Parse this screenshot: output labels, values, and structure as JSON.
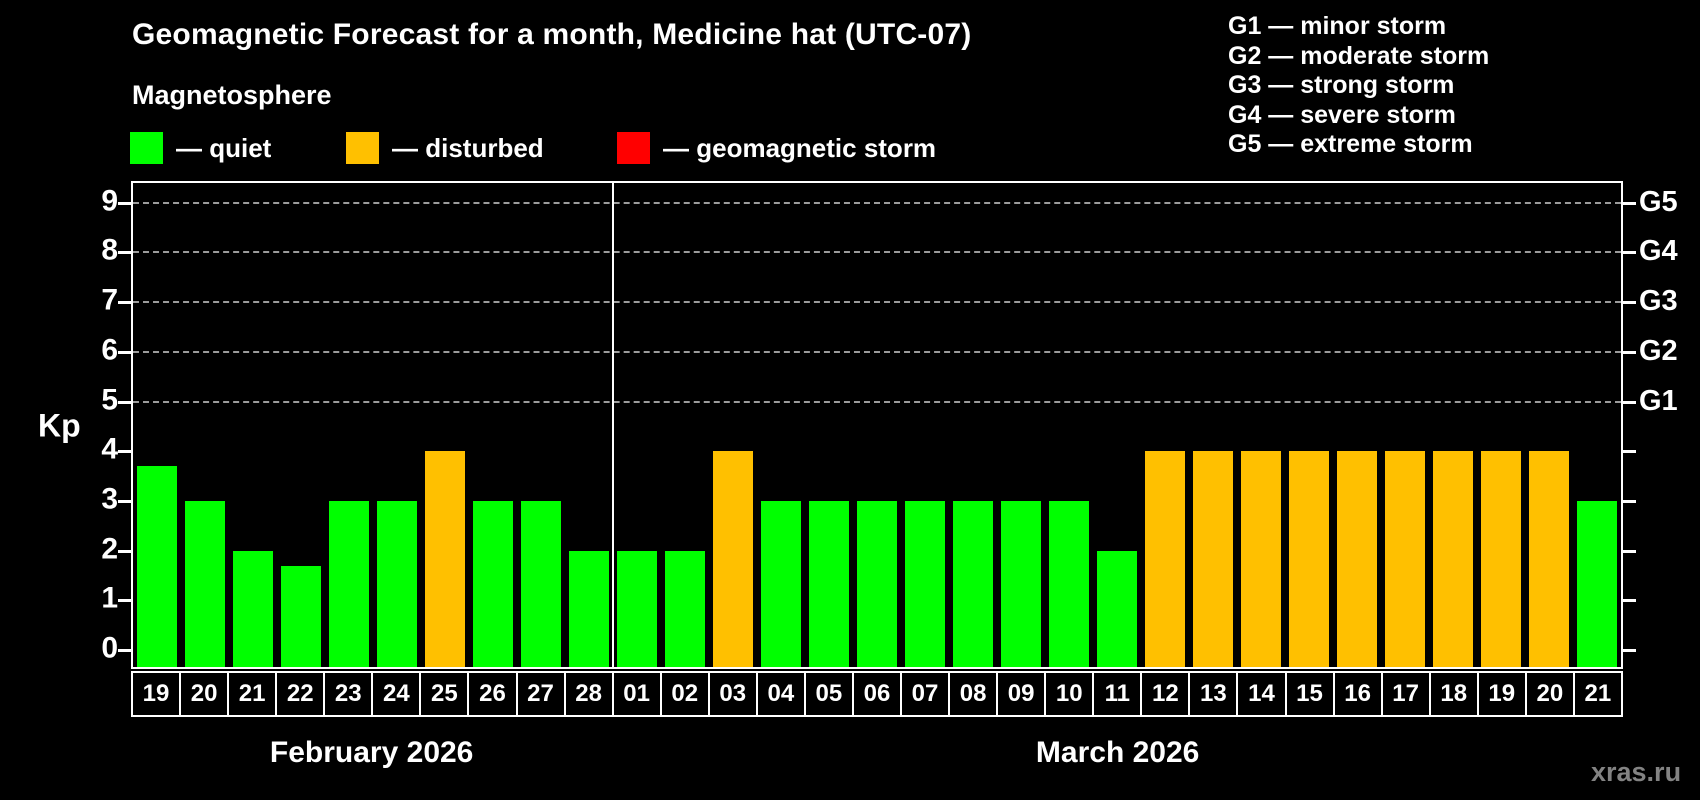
{
  "header": {
    "title": "Geomagnetic Forecast for a month, Medicine hat (UTC-07)",
    "subtitle": "Magnetosphere"
  },
  "legend": {
    "items": [
      {
        "name": "quiet",
        "label": "— quiet",
        "color": "#00ff00"
      },
      {
        "name": "disturbed",
        "label": "— disturbed",
        "color": "#ffc000"
      },
      {
        "name": "geomagnetic-storm",
        "label": "— geomagnetic storm",
        "color": "#ff0000"
      }
    ]
  },
  "storm_scale": {
    "items": [
      "G1 — minor storm",
      "G2 — moderate storm",
      "G3 — strong storm",
      "G4 — severe storm",
      "G5 — extreme storm"
    ]
  },
  "status_colors": {
    "quiet": "#00ff00",
    "disturbed": "#ffc000",
    "storm": "#ff0000"
  },
  "watermark": "xras.ru",
  "chart_data": {
    "type": "bar",
    "title": "Geomagnetic Forecast for a month, Medicine hat (UTC-07)",
    "ylabel": "Kp",
    "ylim": [
      0,
      9
    ],
    "yticks": [
      0,
      1,
      2,
      3,
      4,
      5,
      6,
      7,
      8,
      9
    ],
    "grid": "dashed horizontal gridlines at Kp 5,6,7,8,9 only",
    "legend_position": "top-left",
    "right_axis": [
      {
        "kp": 5,
        "label": "G1"
      },
      {
        "kp": 6,
        "label": "G2"
      },
      {
        "kp": 7,
        "label": "G3"
      },
      {
        "kp": 8,
        "label": "G4"
      },
      {
        "kp": 9,
        "label": "G5"
      }
    ],
    "months": [
      {
        "label": "February 2026",
        "days": [
          {
            "day": "19",
            "kp": 3.7,
            "status": "quiet"
          },
          {
            "day": "20",
            "kp": 3,
            "status": "quiet"
          },
          {
            "day": "21",
            "kp": 2,
            "status": "quiet"
          },
          {
            "day": "22",
            "kp": 1.7,
            "status": "quiet"
          },
          {
            "day": "23",
            "kp": 3,
            "status": "quiet"
          },
          {
            "day": "24",
            "kp": 3,
            "status": "quiet"
          },
          {
            "day": "25",
            "kp": 4,
            "status": "disturbed"
          },
          {
            "day": "26",
            "kp": 3,
            "status": "quiet"
          },
          {
            "day": "27",
            "kp": 3,
            "status": "quiet"
          },
          {
            "day": "28",
            "kp": 2,
            "status": "quiet"
          }
        ]
      },
      {
        "label": "March 2026",
        "days": [
          {
            "day": "01",
            "kp": 2,
            "status": "quiet"
          },
          {
            "day": "02",
            "kp": 2,
            "status": "quiet"
          },
          {
            "day": "03",
            "kp": 4,
            "status": "disturbed"
          },
          {
            "day": "04",
            "kp": 3,
            "status": "quiet"
          },
          {
            "day": "05",
            "kp": 3,
            "status": "quiet"
          },
          {
            "day": "06",
            "kp": 3,
            "status": "quiet"
          },
          {
            "day": "07",
            "kp": 3,
            "status": "quiet"
          },
          {
            "day": "08",
            "kp": 3,
            "status": "quiet"
          },
          {
            "day": "09",
            "kp": 3,
            "status": "quiet"
          },
          {
            "day": "10",
            "kp": 3,
            "status": "quiet"
          },
          {
            "day": "11",
            "kp": 2,
            "status": "quiet"
          },
          {
            "day": "12",
            "kp": 4,
            "status": "disturbed"
          },
          {
            "day": "13",
            "kp": 4,
            "status": "disturbed"
          },
          {
            "day": "14",
            "kp": 4,
            "status": "disturbed"
          },
          {
            "day": "15",
            "kp": 4,
            "status": "disturbed"
          },
          {
            "day": "16",
            "kp": 4,
            "status": "disturbed"
          },
          {
            "day": "17",
            "kp": 4,
            "status": "disturbed"
          },
          {
            "day": "18",
            "kp": 4,
            "status": "disturbed"
          },
          {
            "day": "19",
            "kp": 4,
            "status": "disturbed"
          },
          {
            "day": "20",
            "kp": 4,
            "status": "disturbed"
          },
          {
            "day": "21",
            "kp": 3,
            "status": "quiet"
          }
        ]
      }
    ]
  }
}
